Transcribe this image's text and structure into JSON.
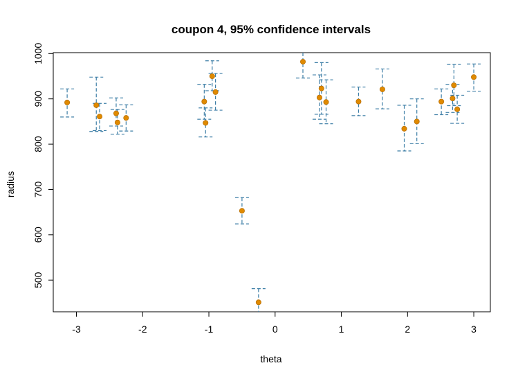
{
  "chart_data": {
    "type": "scatter",
    "title": "coupon 4, 95% confidence intervals",
    "xlabel": "theta",
    "ylabel": "radius",
    "xlim": [
      -3.35,
      3.25
    ],
    "ylim": [
      430,
      1002
    ],
    "x_ticks": [
      -3,
      -2,
      -1,
      0,
      1,
      2,
      3
    ],
    "y_ticks": [
      500,
      600,
      700,
      800,
      900,
      1000
    ],
    "grid": false,
    "legend": "none",
    "colors": {
      "point": "#E08A00",
      "point_edge": "#B86E00",
      "interval": "#3D7EA6",
      "frame": "#000000"
    },
    "points": [
      {
        "x": -3.14,
        "y": 892,
        "lo": 860,
        "hi": 922
      },
      {
        "x": -2.7,
        "y": 886,
        "lo": 828,
        "hi": 948
      },
      {
        "x": -2.65,
        "y": 861,
        "lo": 830,
        "hi": 890
      },
      {
        "x": -2.4,
        "y": 868,
        "lo": 840,
        "hi": 902
      },
      {
        "x": -2.38,
        "y": 848,
        "lo": 822,
        "hi": 877
      },
      {
        "x": -2.25,
        "y": 858,
        "lo": 829,
        "hi": 887
      },
      {
        "x": -1.07,
        "y": 894,
        "lo": 855,
        "hi": 932
      },
      {
        "x": -1.05,
        "y": 847,
        "lo": 816,
        "hi": 880
      },
      {
        "x": -0.95,
        "y": 950,
        "lo": 918,
        "hi": 984
      },
      {
        "x": -0.9,
        "y": 915,
        "lo": 875,
        "hi": 956
      },
      {
        "x": -0.5,
        "y": 653,
        "lo": 624,
        "hi": 682
      },
      {
        "x": -0.25,
        "y": 451,
        "lo": 420,
        "hi": 481
      },
      {
        "x": 0.42,
        "y": 982,
        "lo": 946,
        "hi": 1018
      },
      {
        "x": 0.67,
        "y": 903,
        "lo": 855,
        "hi": 953
      },
      {
        "x": 0.7,
        "y": 923,
        "lo": 866,
        "hi": 980
      },
      {
        "x": 0.77,
        "y": 893,
        "lo": 845,
        "hi": 942
      },
      {
        "x": 1.26,
        "y": 894,
        "lo": 863,
        "hi": 926
      },
      {
        "x": 1.62,
        "y": 921,
        "lo": 878,
        "hi": 966
      },
      {
        "x": 1.95,
        "y": 834,
        "lo": 785,
        "hi": 886
      },
      {
        "x": 2.14,
        "y": 850,
        "lo": 801,
        "hi": 900
      },
      {
        "x": 2.51,
        "y": 894,
        "lo": 865,
        "hi": 922
      },
      {
        "x": 2.68,
        "y": 901,
        "lo": 870,
        "hi": 932
      },
      {
        "x": 2.7,
        "y": 930,
        "lo": 885,
        "hi": 976
      },
      {
        "x": 2.75,
        "y": 877,
        "lo": 846,
        "hi": 908
      },
      {
        "x": 3.0,
        "y": 948,
        "lo": 917,
        "hi": 977
      }
    ]
  }
}
